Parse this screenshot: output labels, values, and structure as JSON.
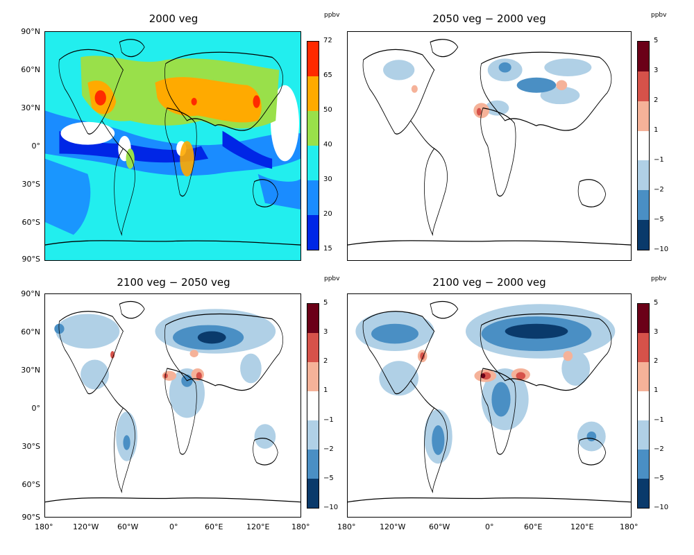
{
  "panels": [
    {
      "id": "p1",
      "title": "2000 veg",
      "unit": "ppbv",
      "kind": "absolute"
    },
    {
      "id": "p2",
      "title": "2050 veg − 2000 veg",
      "unit": "ppbv",
      "kind": "diff"
    },
    {
      "id": "p3",
      "title": "2100 veg − 2050 veg",
      "unit": "ppbv",
      "kind": "diff"
    },
    {
      "id": "p4",
      "title": "2100 veg − 2000 veg",
      "unit": "ppbv",
      "kind": "diff"
    }
  ],
  "lat_ticks": [
    "90°N",
    "60°N",
    "30°N",
    "0°",
    "30°S",
    "60°S",
    "90°S"
  ],
  "lon_ticks": [
    "180°",
    "120°W",
    "60°W",
    "0°",
    "60°E",
    "120°E",
    "180°"
  ],
  "colorbar_abs": {
    "labels": [
      "72",
      "65",
      "50",
      "40",
      "30",
      "20",
      "15"
    ],
    "colors": [
      "#ff2a00",
      "#ffaa00",
      "#99e04a",
      "#22eeee",
      "#1a8cff",
      "#0026e6"
    ]
  },
  "colorbar_diff": {
    "labels": [
      "5",
      "3",
      "2",
      "1",
      "−1",
      "−2",
      "−5",
      "−10"
    ],
    "colors": [
      "#6b0018",
      "#d6524a",
      "#f5b299",
      "#ffffff",
      "#b0d0e6",
      "#4a8fc4",
      "#0a3a6b"
    ]
  }
}
